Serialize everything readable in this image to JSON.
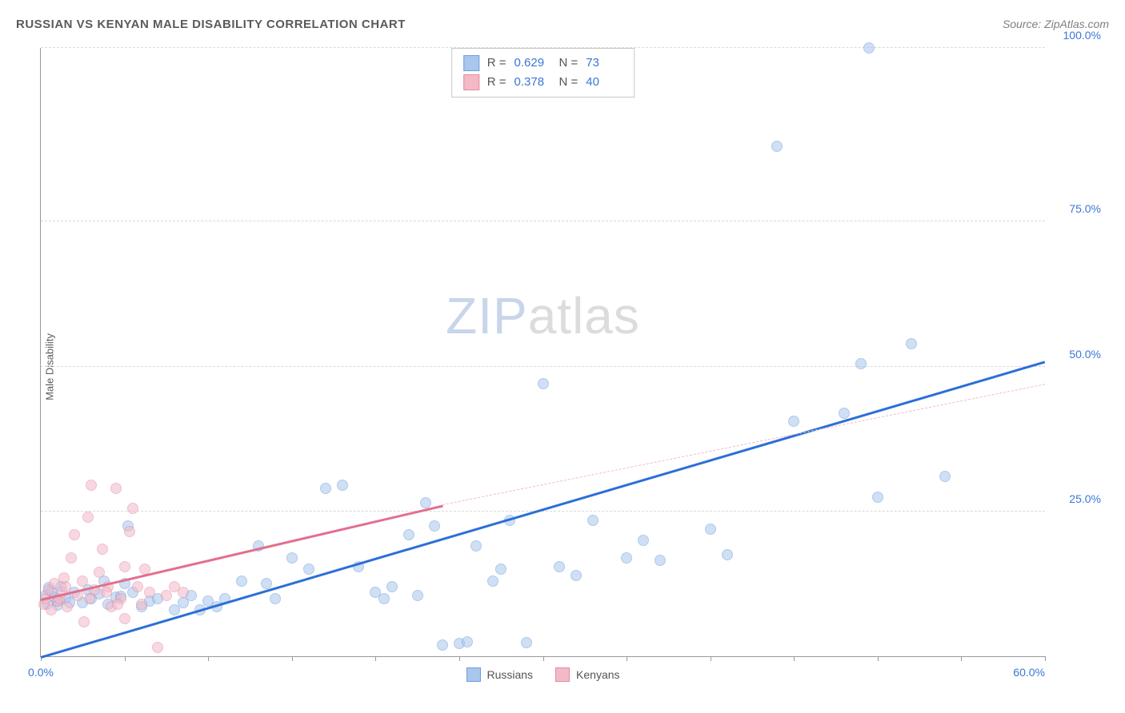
{
  "title": "RUSSIAN VS KENYAN MALE DISABILITY CORRELATION CHART",
  "source": "Source: ZipAtlas.com",
  "y_axis_label": "Male Disability",
  "watermark": {
    "part1": "ZIP",
    "part2": "atlas",
    "fontsize": 64
  },
  "chart": {
    "type": "scatter",
    "background_color": "#ffffff",
    "grid_color": "#d8d8d8",
    "grid_style": "dashed",
    "axis_color": "#999999",
    "tick_label_color": "#3b76d6",
    "tick_label_fontsize": 14,
    "xlim": [
      0,
      60
    ],
    "ylim": [
      0,
      105
    ],
    "x_ticks": [
      0,
      5,
      10,
      15,
      20,
      25,
      30,
      35,
      40,
      45,
      50,
      55,
      60
    ],
    "x_tick_labels": {
      "0": "0.0%",
      "60": "60.0%"
    },
    "y_gridlines": [
      25,
      50,
      75,
      105
    ],
    "y_tick_labels": {
      "25": "25.0%",
      "50": "50.0%",
      "75": "75.0%",
      "105": "100.0%"
    },
    "point_radius": 7,
    "point_opacity": 0.55,
    "series": [
      {
        "name": "Russians",
        "color_fill": "#a9c6ec",
        "color_stroke": "#6f9fde",
        "R": "0.629",
        "N": "73",
        "trend": {
          "x1": 0,
          "y1": 0,
          "x2": 60,
          "y2": 51,
          "color": "#2b6fd6",
          "width": 2.5,
          "style": "solid"
        },
        "points": [
          [
            0.3,
            10.5
          ],
          [
            0.5,
            11.8
          ],
          [
            0.8,
            10.2
          ],
          [
            1.0,
            9.5
          ],
          [
            0.6,
            11.2
          ],
          [
            1.2,
            12.0
          ],
          [
            1.5,
            10.0
          ],
          [
            1.0,
            8.8
          ],
          [
            0.4,
            9.0
          ],
          [
            2.0,
            11.0
          ],
          [
            2.5,
            9.2
          ],
          [
            3.0,
            10.0
          ],
          [
            3.5,
            10.8
          ],
          [
            4.0,
            9.0
          ],
          [
            4.5,
            10.2
          ],
          [
            5.0,
            12.5
          ],
          [
            5.5,
            11.0
          ],
          [
            6.0,
            8.5
          ],
          [
            6.5,
            9.5
          ],
          [
            7.0,
            10.0
          ],
          [
            8.0,
            8.0
          ],
          [
            8.5,
            9.2
          ],
          [
            9.0,
            10.5
          ],
          [
            10.0,
            9.5
          ],
          [
            11.0,
            10.0
          ],
          [
            12.0,
            13.0
          ],
          [
            13.0,
            19.0
          ],
          [
            13.5,
            12.5
          ],
          [
            14.0,
            10.0
          ],
          [
            15.0,
            17.0
          ],
          [
            16.0,
            15.0
          ],
          [
            17.0,
            29.0
          ],
          [
            18.0,
            29.5
          ],
          [
            19.0,
            15.5
          ],
          [
            20.0,
            11.0
          ],
          [
            20.5,
            10.0
          ],
          [
            21.0,
            12.0
          ],
          [
            22.0,
            21.0
          ],
          [
            22.5,
            10.5
          ],
          [
            23.0,
            26.5
          ],
          [
            23.5,
            22.5
          ],
          [
            24.0,
            2.0
          ],
          [
            25.0,
            2.2
          ],
          [
            25.5,
            2.5
          ],
          [
            26.0,
            19.0
          ],
          [
            27.0,
            13.0
          ],
          [
            27.5,
            15.0
          ],
          [
            28.0,
            23.5
          ],
          [
            29.0,
            2.3
          ],
          [
            30.0,
            47.0
          ],
          [
            31.0,
            15.5
          ],
          [
            32.0,
            14.0
          ],
          [
            33.0,
            23.5
          ],
          [
            35.0,
            17.0
          ],
          [
            36.0,
            20.0
          ],
          [
            37.0,
            16.5
          ],
          [
            40.0,
            22.0
          ],
          [
            41.0,
            17.5
          ],
          [
            44.0,
            88.0
          ],
          [
            45.0,
            40.5
          ],
          [
            48.0,
            42.0
          ],
          [
            49.0,
            50.5
          ],
          [
            49.5,
            105.0
          ],
          [
            50.0,
            27.5
          ],
          [
            52.0,
            54.0
          ],
          [
            54.0,
            31.0
          ],
          [
            3.8,
            13.0
          ],
          [
            5.2,
            22.5
          ],
          [
            4.8,
            10.3
          ],
          [
            9.5,
            8.0
          ],
          [
            10.5,
            8.6
          ],
          [
            2.8,
            11.5
          ],
          [
            1.7,
            9.2
          ]
        ]
      },
      {
        "name": "Kenyans",
        "color_fill": "#f4b9c7",
        "color_stroke": "#e68aa3",
        "R": "0.378",
        "N": "40",
        "trend_solid": {
          "x1": 0,
          "y1": 10,
          "x2": 24,
          "y2": 26.2,
          "color": "#e26f8f",
          "width": 2.5,
          "style": "solid"
        },
        "trend_dashed": {
          "x1": 24,
          "y1": 26.2,
          "x2": 60,
          "y2": 47,
          "color": "#f1b8c6",
          "width": 1.5,
          "style": "dashed"
        },
        "points": [
          [
            0.2,
            9.0
          ],
          [
            0.3,
            10.0
          ],
          [
            0.5,
            11.5
          ],
          [
            0.6,
            8.0
          ],
          [
            0.8,
            12.5
          ],
          [
            1.0,
            9.5
          ],
          [
            1.1,
            10.0
          ],
          [
            1.3,
            11.0
          ],
          [
            1.5,
            12.0
          ],
          [
            1.6,
            8.5
          ],
          [
            1.8,
            17.0
          ],
          [
            2.0,
            21.0
          ],
          [
            2.2,
            10.5
          ],
          [
            2.5,
            13.0
          ],
          [
            2.6,
            6.0
          ],
          [
            2.8,
            24.0
          ],
          [
            3.0,
            29.5
          ],
          [
            3.2,
            11.5
          ],
          [
            3.5,
            14.5
          ],
          [
            3.7,
            18.5
          ],
          [
            4.0,
            12.0
          ],
          [
            4.2,
            8.5
          ],
          [
            4.5,
            29.0
          ],
          [
            4.8,
            10.0
          ],
          [
            5.0,
            15.5
          ],
          [
            5.0,
            6.5
          ],
          [
            5.3,
            21.5
          ],
          [
            5.5,
            25.5
          ],
          [
            5.8,
            12.0
          ],
          [
            6.0,
            9.0
          ],
          [
            6.2,
            15.0
          ],
          [
            6.5,
            11.0
          ],
          [
            7.0,
            1.5
          ],
          [
            7.5,
            10.5
          ],
          [
            8.0,
            12.0
          ],
          [
            8.5,
            11.0
          ],
          [
            3.9,
            11.0
          ],
          [
            4.6,
            9.0
          ],
          [
            1.4,
            13.5
          ],
          [
            2.9,
            10.0
          ]
        ]
      }
    ]
  },
  "legend_top": {
    "border_color": "#c9c9c9",
    "rows": [
      {
        "swatch_fill": "#a9c6ec",
        "swatch_stroke": "#6f9fde",
        "R_label": "R =",
        "R_value": "0.629",
        "N_label": "N =",
        "N_value": "73"
      },
      {
        "swatch_fill": "#f4b9c7",
        "swatch_stroke": "#e68aa3",
        "R_label": "R =",
        "R_value": "0.378",
        "N_label": "N =",
        "N_value": "40"
      }
    ]
  },
  "legend_bottom": {
    "items": [
      {
        "swatch_fill": "#a9c6ec",
        "swatch_stroke": "#6f9fde",
        "label": "Russians"
      },
      {
        "swatch_fill": "#f4b9c7",
        "swatch_stroke": "#e68aa3",
        "label": "Kenyans"
      }
    ]
  }
}
